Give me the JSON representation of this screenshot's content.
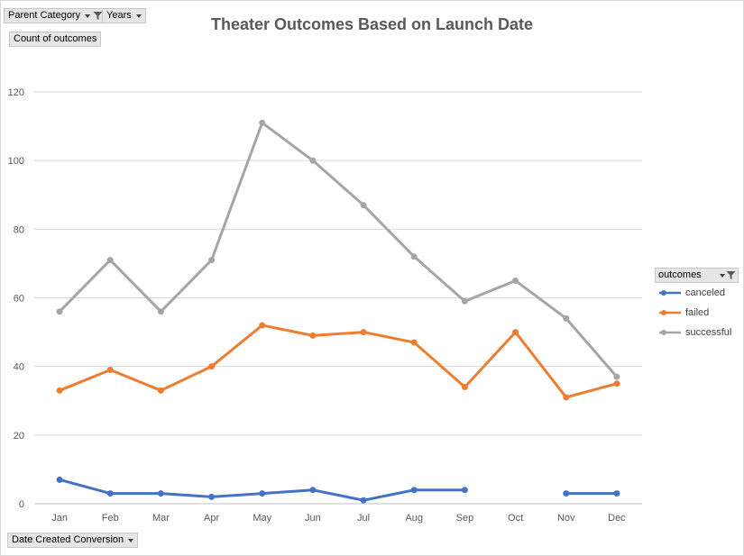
{
  "filters": {
    "parent_category": "Parent Category",
    "years": "Years",
    "values_field": "Count of outcomes",
    "axis_field": "Date Created Conversion"
  },
  "legend": {
    "title": "outcomes"
  },
  "chart_data": {
    "type": "line",
    "title": "Theater Outcomes Based on Launch Date",
    "xlabel": "",
    "ylabel": "",
    "categories": [
      "Jan",
      "Feb",
      "Mar",
      "Apr",
      "May",
      "Jun",
      "Jul",
      "Aug",
      "Sep",
      "Oct",
      "Nov",
      "Dec"
    ],
    "ylim": [
      0,
      120
    ],
    "yticks": [
      0,
      20,
      40,
      60,
      80,
      100,
      120
    ],
    "grid": true,
    "legend_position": "right",
    "series": [
      {
        "name": "canceled",
        "color": "#4472c4",
        "values": [
          7,
          3,
          3,
          2,
          3,
          4,
          1,
          4,
          4,
          null,
          3,
          3
        ]
      },
      {
        "name": "failed",
        "color": "#ed7d31",
        "values": [
          33,
          39,
          33,
          40,
          52,
          49,
          50,
          47,
          34,
          50,
          31,
          35
        ]
      },
      {
        "name": "successful",
        "color": "#a5a5a5",
        "values": [
          56,
          71,
          56,
          71,
          111,
          100,
          87,
          72,
          59,
          65,
          54,
          37
        ]
      }
    ]
  }
}
